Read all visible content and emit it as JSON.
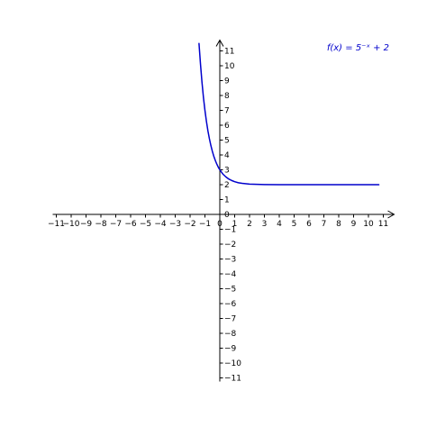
{
  "chart_data": {
    "type": "line",
    "function_label": "f(x) = 5⁻ˣ + 2",
    "xlim": [
      -11,
      11
    ],
    "ylim": [
      -11,
      11
    ],
    "x_ticks": [
      -11,
      -10,
      -9,
      -8,
      -7,
      -6,
      -5,
      -4,
      -3,
      -2,
      -1,
      0,
      1,
      2,
      3,
      4,
      5,
      6,
      7,
      8,
      9,
      10,
      11
    ],
    "y_ticks": [
      -11,
      -10,
      -9,
      -8,
      -7,
      -6,
      -5,
      -4,
      -3,
      -2,
      -1,
      0,
      1,
      2,
      3,
      4,
      5,
      6,
      7,
      8,
      9,
      10,
      11
    ],
    "x_tick_labels": [
      "−11",
      "−10",
      "−9",
      "−8",
      "−7",
      "−6",
      "−5",
      "−4",
      "−3",
      "−2",
      "−1",
      "0",
      "1",
      "2",
      "3",
      "4",
      "5",
      "6",
      "7",
      "8",
      "9",
      "10",
      "11"
    ],
    "y_tick_labels": [
      "−11",
      "−10",
      "−9",
      "−8",
      "−7",
      "−6",
      "−5",
      "−4",
      "−3",
      "−2",
      "−1",
      "0",
      "1",
      "2",
      "3",
      "4",
      "5",
      "6",
      "7",
      "8",
      "9",
      "10",
      "11"
    ],
    "series": [
      {
        "color": "#0000cc",
        "x": [
          -1.4,
          -1.3,
          -1.2,
          -1.1,
          -1.0,
          -0.9,
          -0.8,
          -0.7,
          -0.6,
          -0.5,
          -0.4,
          -0.3,
          -0.2,
          -0.1,
          0.0,
          0.2,
          0.4,
          0.6,
          0.8,
          1.0,
          1.25,
          1.5,
          2.0,
          2.5,
          3.0,
          4.0,
          5.0,
          6.0,
          7.0,
          8.0,
          9.0,
          10.0,
          10.7
        ],
        "y": [
          11.5,
          10.12,
          8.9,
          7.86,
          7.0,
          6.26,
          5.62,
          5.09,
          4.63,
          4.24,
          3.9,
          3.62,
          3.38,
          3.17,
          3.0,
          2.72,
          2.53,
          2.38,
          2.28,
          2.2,
          2.13,
          2.09,
          2.04,
          2.02,
          2.01,
          2.0,
          2.0,
          2.0,
          2.0,
          2.0,
          2.0,
          2.0,
          2.0
        ]
      }
    ],
    "grid": false,
    "legend_position": "top-right"
  }
}
